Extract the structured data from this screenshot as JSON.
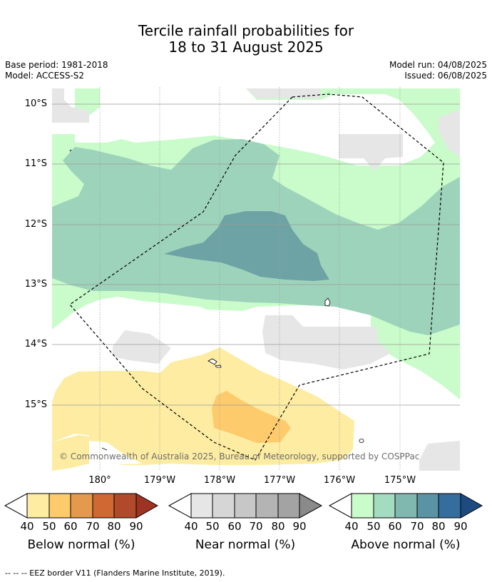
{
  "title": {
    "line1": "Tercile rainfall probabilities for",
    "line2": "18 to 31 August 2025"
  },
  "meta": {
    "base_period": "Base period: 1981-2018",
    "model": "Model: ACCESS-S2",
    "model_run": "Model run: 04/08/2025",
    "issued": "Issued: 06/08/2025"
  },
  "axes": {
    "lat_labels": [
      "10°S",
      "11°S",
      "12°S",
      "13°S",
      "14°S",
      "15°S"
    ],
    "lon_labels": [
      "180°",
      "179°W",
      "178°W",
      "177°W",
      "176°W",
      "175°W"
    ]
  },
  "map_colors": {
    "above_40": "#c9fcca",
    "above_50": "#9ed3bb",
    "above_60": "#6ea3a5",
    "near_40": "#e6e6e6",
    "below_40": "#fdeca1",
    "below_50": "#fdcb6c",
    "land": "#ffffff",
    "eez": "#000000"
  },
  "copyright": "© Commonwealth of Australia 2025, Bureau of Meteorology, supported by COSPPac",
  "colorbars": [
    {
      "label": "Below normal (%)",
      "ticks": [
        "40",
        "50",
        "60",
        "70",
        "80",
        "90"
      ],
      "colors": [
        "#fdeca1",
        "#fdcb6c",
        "#e39a4d",
        "#cf6833",
        "#b04a2a",
        "#9e3322"
      ]
    },
    {
      "label": "Near normal (%)",
      "ticks": [
        "40",
        "50",
        "60",
        "70",
        "80",
        "90"
      ],
      "colors": [
        "#e6e6e6",
        "#d6d6d6",
        "#c7c7c7",
        "#b4b4b4",
        "#a3a3a3",
        "#8a8a8a"
      ]
    },
    {
      "label": "Above normal (%)",
      "ticks": [
        "40",
        "50",
        "60",
        "70",
        "80",
        "90"
      ],
      "colors": [
        "#c9fcca",
        "#a3dcc0",
        "#80b8b0",
        "#5a94a4",
        "#356d9e",
        "#1c4b82"
      ]
    }
  ],
  "footnote": "--  --  -- EEZ border V11 (Flanders Marine Institute, 2019)."
}
